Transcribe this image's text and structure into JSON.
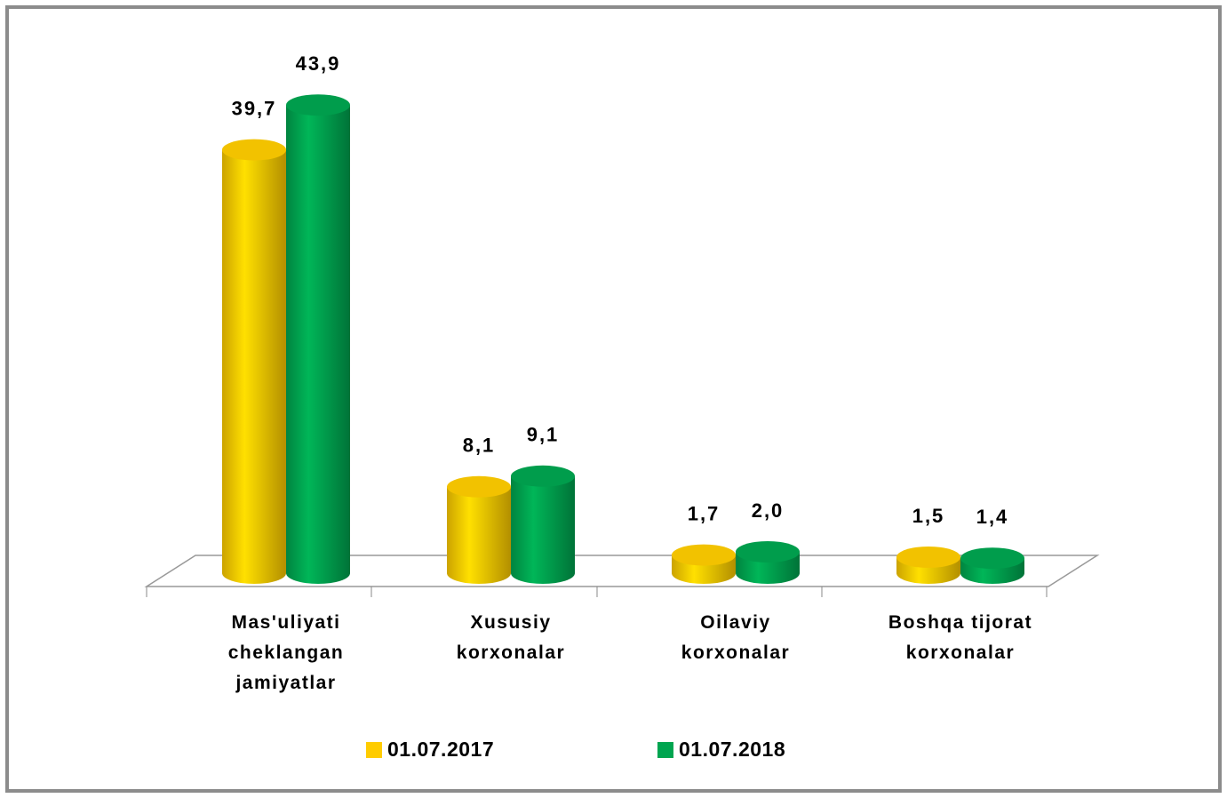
{
  "chart_data": {
    "type": "bar",
    "categories": [
      "Mas'uliyati cheklangan jamiyatlar",
      "Xususiy korxonalar",
      "Oilaviy korxonalar",
      "Boshqa tijorat korxonalar"
    ],
    "series": [
      {
        "name": "01.07.2017",
        "color": "#ffcc00",
        "values": [
          39.7,
          8.1,
          1.7,
          1.5
        ],
        "value_labels": [
          "39,7",
          "8,1",
          "1,7",
          "1,5"
        ]
      },
      {
        "name": "01.07.2018",
        "color": "#00a550",
        "values": [
          43.9,
          9.1,
          2.0,
          1.4
        ],
        "value_labels": [
          "43,9",
          "9,1",
          "2,0",
          "1,4"
        ]
      }
    ]
  }
}
